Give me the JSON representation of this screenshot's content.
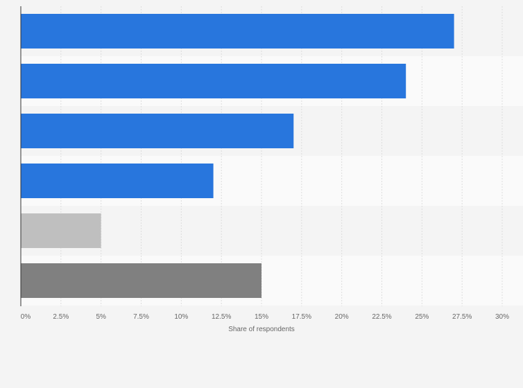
{
  "chart_data": {
    "type": "bar",
    "orientation": "horizontal",
    "categories": [
      "",
      "",
      "",
      "",
      "",
      ""
    ],
    "values": [
      27,
      24,
      17,
      12,
      5,
      15
    ],
    "bar_colors": [
      "#2876dd",
      "#2876dd",
      "#2876dd",
      "#2876dd",
      "#bfbfbf",
      "#808080"
    ],
    "xlabel": "Share of respondents",
    "ylabel": "",
    "xlim": [
      0,
      30
    ],
    "x_ticks": [
      0,
      2.5,
      5,
      7.5,
      10,
      12.5,
      15,
      17.5,
      20,
      22.5,
      25,
      27.5,
      30
    ],
    "x_tick_labels": [
      "0%",
      "2.5%",
      "5%",
      "7.5%",
      "10%",
      "12.5%",
      "15%",
      "17.5%",
      "20%",
      "22.5%",
      "25%",
      "27.5%",
      "30%"
    ],
    "grid": true,
    "grid_color": "#dddddd",
    "row_band_colors": [
      "#f4f4f4",
      "#fafafa"
    ],
    "axis_color": "#333333"
  }
}
